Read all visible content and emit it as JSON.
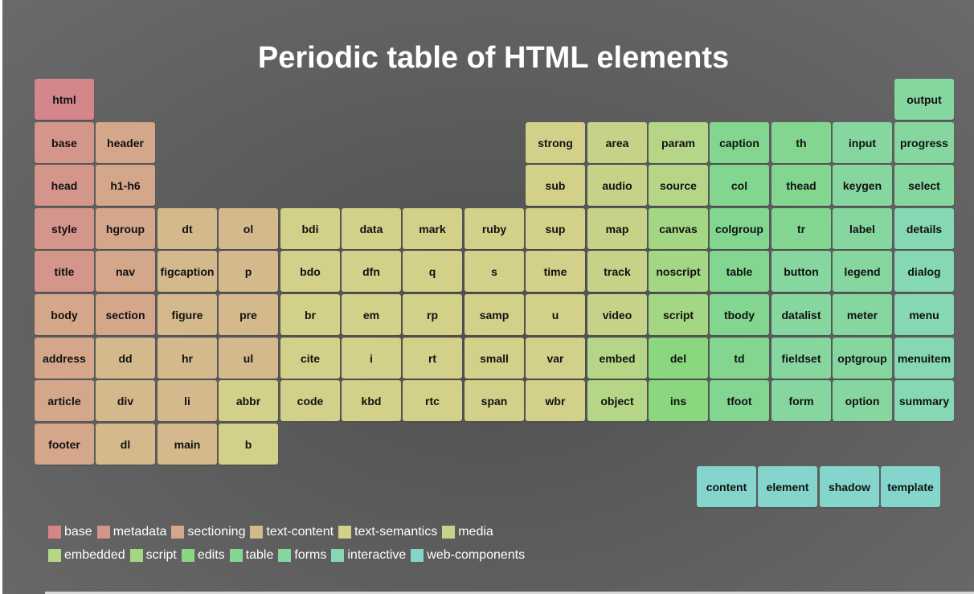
{
  "title": "Periodic table of HTML elements",
  "colors": {
    "base": "#d4868b",
    "metadata": "#d4958a",
    "sectioning": "#d4a68a",
    "text-content": "#d4b98c",
    "text-semantics": "#d2d089",
    "media": "#c4d388",
    "embedded": "#b5d687",
    "script": "#a4d784",
    "edits": "#8ad77f",
    "table": "#82d690",
    "forms": "#86d6a0",
    "interactive": "#86d8b4",
    "web-components": "#84d6cd"
  },
  "elements": [
    {
      "name": "html",
      "category": "base",
      "col": 0,
      "row": 0
    },
    {
      "name": "base",
      "category": "metadata",
      "col": 0,
      "row": 1
    },
    {
      "name": "head",
      "category": "metadata",
      "col": 0,
      "row": 2
    },
    {
      "name": "style",
      "category": "metadata",
      "col": 0,
      "row": 3
    },
    {
      "name": "title",
      "category": "metadata",
      "col": 0,
      "row": 4
    },
    {
      "name": "body",
      "category": "sectioning",
      "col": 0,
      "row": 5
    },
    {
      "name": "address",
      "category": "sectioning",
      "col": 0,
      "row": 6
    },
    {
      "name": "article",
      "category": "sectioning",
      "col": 0,
      "row": 7
    },
    {
      "name": "footer",
      "category": "sectioning",
      "col": 0,
      "row": 8
    },
    {
      "name": "header",
      "category": "sectioning",
      "col": 1,
      "row": 1
    },
    {
      "name": "h1-h6",
      "category": "sectioning",
      "col": 1,
      "row": 2
    },
    {
      "name": "hgroup",
      "category": "sectioning",
      "col": 1,
      "row": 3
    },
    {
      "name": "nav",
      "category": "sectioning",
      "col": 1,
      "row": 4
    },
    {
      "name": "section",
      "category": "sectioning",
      "col": 1,
      "row": 5
    },
    {
      "name": "dd",
      "category": "text-content",
      "col": 1,
      "row": 6
    },
    {
      "name": "div",
      "category": "text-content",
      "col": 1,
      "row": 7
    },
    {
      "name": "dl",
      "category": "text-content",
      "col": 1,
      "row": 8
    },
    {
      "name": "dt",
      "category": "text-content",
      "col": 2,
      "row": 3
    },
    {
      "name": "figcaption",
      "category": "text-content",
      "col": 2,
      "row": 4
    },
    {
      "name": "figure",
      "category": "text-content",
      "col": 2,
      "row": 5
    },
    {
      "name": "hr",
      "category": "text-content",
      "col": 2,
      "row": 6
    },
    {
      "name": "li",
      "category": "text-content",
      "col": 2,
      "row": 7
    },
    {
      "name": "main",
      "category": "text-content",
      "col": 2,
      "row": 8
    },
    {
      "name": "ol",
      "category": "text-content",
      "col": 3,
      "row": 3
    },
    {
      "name": "p",
      "category": "text-content",
      "col": 3,
      "row": 4
    },
    {
      "name": "pre",
      "category": "text-content",
      "col": 3,
      "row": 5
    },
    {
      "name": "ul",
      "category": "text-content",
      "col": 3,
      "row": 6
    },
    {
      "name": "abbr",
      "category": "text-semantics",
      "col": 3,
      "row": 7
    },
    {
      "name": "b",
      "category": "text-semantics",
      "col": 3,
      "row": 8
    },
    {
      "name": "bdi",
      "category": "text-semantics",
      "col": 4,
      "row": 3
    },
    {
      "name": "bdo",
      "category": "text-semantics",
      "col": 4,
      "row": 4
    },
    {
      "name": "br",
      "category": "text-semantics",
      "col": 4,
      "row": 5
    },
    {
      "name": "cite",
      "category": "text-semantics",
      "col": 4,
      "row": 6
    },
    {
      "name": "code",
      "category": "text-semantics",
      "col": 4,
      "row": 7
    },
    {
      "name": "data",
      "category": "text-semantics",
      "col": 5,
      "row": 3
    },
    {
      "name": "dfn",
      "category": "text-semantics",
      "col": 5,
      "row": 4
    },
    {
      "name": "em",
      "category": "text-semantics",
      "col": 5,
      "row": 5
    },
    {
      "name": "i",
      "category": "text-semantics",
      "col": 5,
      "row": 6
    },
    {
      "name": "kbd",
      "category": "text-semantics",
      "col": 5,
      "row": 7
    },
    {
      "name": "mark",
      "category": "text-semantics",
      "col": 6,
      "row": 3
    },
    {
      "name": "q",
      "category": "text-semantics",
      "col": 6,
      "row": 4
    },
    {
      "name": "rp",
      "category": "text-semantics",
      "col": 6,
      "row": 5
    },
    {
      "name": "rt",
      "category": "text-semantics",
      "col": 6,
      "row": 6
    },
    {
      "name": "rtc",
      "category": "text-semantics",
      "col": 6,
      "row": 7
    },
    {
      "name": "ruby",
      "category": "text-semantics",
      "col": 7,
      "row": 3
    },
    {
      "name": "s",
      "category": "text-semantics",
      "col": 7,
      "row": 4
    },
    {
      "name": "samp",
      "category": "text-semantics",
      "col": 7,
      "row": 5
    },
    {
      "name": "small",
      "category": "text-semantics",
      "col": 7,
      "row": 6
    },
    {
      "name": "span",
      "category": "text-semantics",
      "col": 7,
      "row": 7
    },
    {
      "name": "strong",
      "category": "text-semantics",
      "col": 8,
      "row": 1
    },
    {
      "name": "sub",
      "category": "text-semantics",
      "col": 8,
      "row": 2
    },
    {
      "name": "sup",
      "category": "text-semantics",
      "col": 8,
      "row": 3
    },
    {
      "name": "time",
      "category": "text-semantics",
      "col": 8,
      "row": 4
    },
    {
      "name": "u",
      "category": "text-semantics",
      "col": 8,
      "row": 5
    },
    {
      "name": "var",
      "category": "text-semantics",
      "col": 8,
      "row": 6
    },
    {
      "name": "wbr",
      "category": "text-semantics",
      "col": 8,
      "row": 7
    },
    {
      "name": "area",
      "category": "media",
      "col": 9,
      "row": 1
    },
    {
      "name": "audio",
      "category": "media",
      "col": 9,
      "row": 2
    },
    {
      "name": "map",
      "category": "media",
      "col": 9,
      "row": 3
    },
    {
      "name": "track",
      "category": "media",
      "col": 9,
      "row": 4
    },
    {
      "name": "video",
      "category": "media",
      "col": 9,
      "row": 5
    },
    {
      "name": "embed",
      "category": "embedded",
      "col": 9,
      "row": 6
    },
    {
      "name": "object",
      "category": "embedded",
      "col": 9,
      "row": 7
    },
    {
      "name": "param",
      "category": "embedded",
      "col": 10,
      "row": 1
    },
    {
      "name": "source",
      "category": "embedded",
      "col": 10,
      "row": 2
    },
    {
      "name": "canvas",
      "category": "script",
      "col": 10,
      "row": 3
    },
    {
      "name": "noscript",
      "category": "script",
      "col": 10,
      "row": 4
    },
    {
      "name": "script",
      "category": "script",
      "col": 10,
      "row": 5
    },
    {
      "name": "del",
      "category": "edits",
      "col": 10,
      "row": 6
    },
    {
      "name": "ins",
      "category": "edits",
      "col": 10,
      "row": 7
    },
    {
      "name": "caption",
      "category": "table",
      "col": 11,
      "row": 1
    },
    {
      "name": "col",
      "category": "table",
      "col": 11,
      "row": 2
    },
    {
      "name": "colgroup",
      "category": "table",
      "col": 11,
      "row": 3
    },
    {
      "name": "table",
      "category": "table",
      "col": 11,
      "row": 4
    },
    {
      "name": "tbody",
      "category": "table",
      "col": 11,
      "row": 5
    },
    {
      "name": "td",
      "category": "table",
      "col": 11,
      "row": 6
    },
    {
      "name": "tfoot",
      "category": "table",
      "col": 11,
      "row": 7
    },
    {
      "name": "th",
      "category": "table",
      "col": 12,
      "row": 1
    },
    {
      "name": "thead",
      "category": "table",
      "col": 12,
      "row": 2
    },
    {
      "name": "tr",
      "category": "table",
      "col": 12,
      "row": 3
    },
    {
      "name": "button",
      "category": "forms",
      "col": 12,
      "row": 4
    },
    {
      "name": "datalist",
      "category": "forms",
      "col": 12,
      "row": 5
    },
    {
      "name": "fieldset",
      "category": "forms",
      "col": 12,
      "row": 6
    },
    {
      "name": "form",
      "category": "forms",
      "col": 12,
      "row": 7
    },
    {
      "name": "input",
      "category": "forms",
      "col": 13,
      "row": 1
    },
    {
      "name": "keygen",
      "category": "forms",
      "col": 13,
      "row": 2
    },
    {
      "name": "label",
      "category": "forms",
      "col": 13,
      "row": 3
    },
    {
      "name": "legend",
      "category": "forms",
      "col": 13,
      "row": 4
    },
    {
      "name": "meter",
      "category": "forms",
      "col": 13,
      "row": 5
    },
    {
      "name": "optgroup",
      "category": "forms",
      "col": 13,
      "row": 6
    },
    {
      "name": "option",
      "category": "forms",
      "col": 13,
      "row": 7
    },
    {
      "name": "output",
      "category": "forms",
      "col": 14,
      "row": 0
    },
    {
      "name": "progress",
      "category": "forms",
      "col": 14,
      "row": 1
    },
    {
      "name": "select",
      "category": "forms",
      "col": 14,
      "row": 2
    },
    {
      "name": "details",
      "category": "interactive",
      "col": 14,
      "row": 3
    },
    {
      "name": "dialog",
      "category": "interactive",
      "col": 14,
      "row": 4
    },
    {
      "name": "menu",
      "category": "interactive",
      "col": 14,
      "row": 5
    },
    {
      "name": "menuitem",
      "category": "interactive",
      "col": 14,
      "row": 6
    },
    {
      "name": "summary",
      "category": "interactive",
      "col": 14,
      "row": 7
    }
  ],
  "web_components": [
    {
      "name": "content",
      "category": "web-components"
    },
    {
      "name": "element",
      "category": "web-components"
    },
    {
      "name": "shadow",
      "category": "web-components"
    },
    {
      "name": "template",
      "category": "web-components"
    }
  ],
  "legend": {
    "rows": [
      [
        "base",
        "metadata",
        "sectioning",
        "text-content",
        "text-semantics",
        "media"
      ],
      [
        "embedded",
        "script",
        "edits",
        "table",
        "forms",
        "interactive",
        "web-components"
      ]
    ]
  }
}
